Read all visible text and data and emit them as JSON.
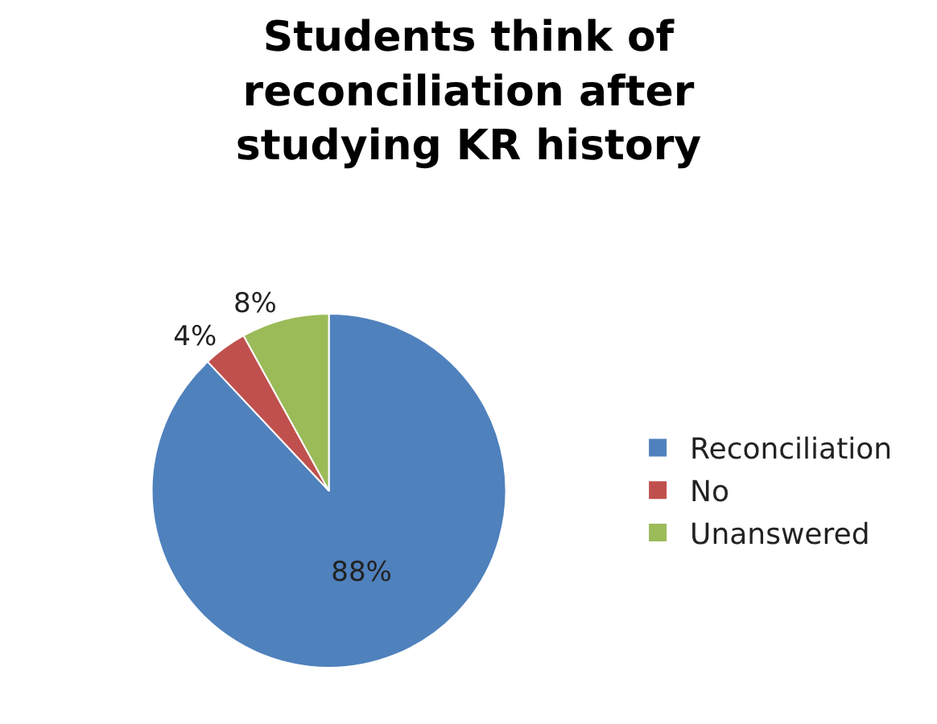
{
  "chart_data": {
    "type": "pie",
    "title": "Students think of reconciliation after studying KR history",
    "categories": [
      "Reconciliation",
      "No",
      "Unanswered"
    ],
    "values": [
      88,
      4,
      8
    ],
    "colors": [
      "#4f81bd",
      "#c0504d",
      "#9bbb59"
    ],
    "value_labels": [
      "88%",
      "4%",
      "8%"
    ],
    "legend": "right"
  }
}
